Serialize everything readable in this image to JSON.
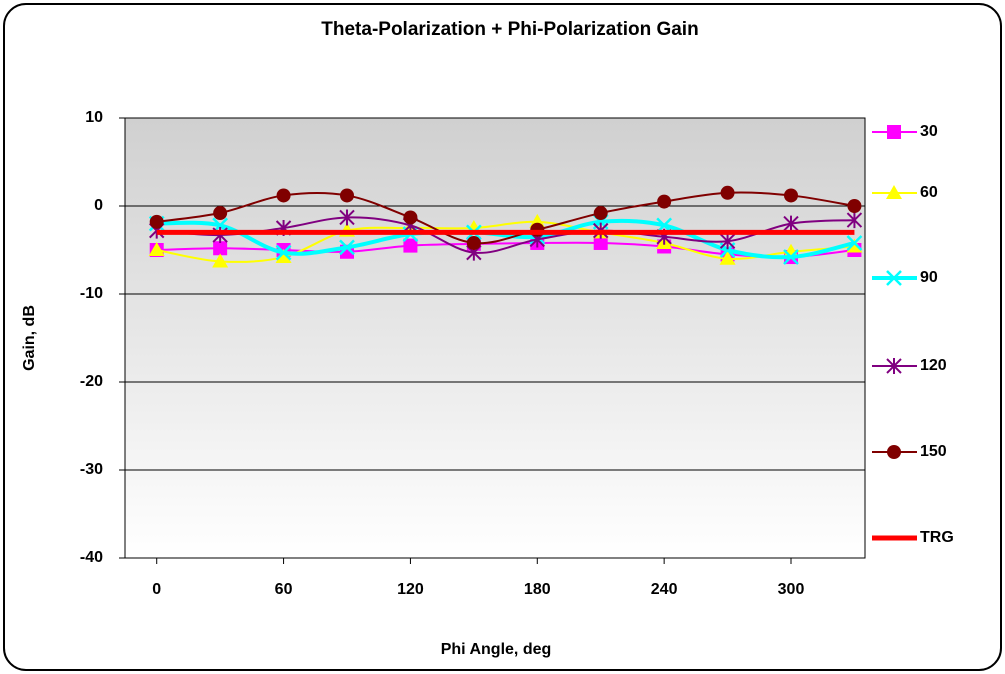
{
  "chart_data": {
    "type": "line",
    "title": "Theta-Polarization + Phi-Polarization Gain",
    "xlabel": "Phi Angle, deg",
    "ylabel": "Gain, dB",
    "x": [
      0,
      30,
      60,
      90,
      120,
      150,
      180,
      210,
      240,
      270,
      300,
      330
    ],
    "xlim": [
      -15,
      335
    ],
    "xticks": [
      0,
      60,
      120,
      180,
      240,
      300
    ],
    "ylim": [
      -40,
      10
    ],
    "yticks": [
      -40,
      -30,
      -20,
      -10,
      0,
      10
    ],
    "grid": true,
    "legend": "right",
    "series": [
      {
        "name": "30",
        "color": "#ff00ff",
        "marker": "square",
        "values": [
          -5,
          -4.8,
          -5,
          -5.2,
          -4.5,
          -4.3,
          -4.2,
          -4.2,
          -4.6,
          -5.5,
          -5.8,
          -5
        ]
      },
      {
        "name": "60",
        "color": "#ffff00",
        "marker": "triangle",
        "values": [
          -5,
          -6.3,
          -5.8,
          -2.8,
          -2.5,
          -2.5,
          -1.8,
          -3,
          -4.2,
          -6,
          -5.2,
          -4.6
        ]
      },
      {
        "name": "90",
        "color": "#00ffff",
        "marker": "x",
        "values": [
          -2,
          -2.2,
          -5.3,
          -4.7,
          -3.2,
          -3,
          -3.5,
          -1.8,
          -2.2,
          -5,
          -5.8,
          -4.2
        ]
      },
      {
        "name": "120",
        "color": "#800080",
        "marker": "star",
        "values": [
          -2.8,
          -3.3,
          -2.5,
          -1.3,
          -2.2,
          -5.3,
          -3.8,
          -2.8,
          -3.5,
          -4,
          -2,
          -1.6
        ]
      },
      {
        "name": "150",
        "color": "#800000",
        "marker": "circle",
        "values": [
          -1.8,
          -0.8,
          1.2,
          1.2,
          -1.3,
          -4.2,
          -2.7,
          -0.8,
          0.5,
          1.5,
          1.2,
          0
        ]
      },
      {
        "name": "TRG",
        "color": "#ff0000",
        "marker": "none",
        "values": [
          -3,
          -3,
          -3,
          -3,
          -3,
          -3,
          -3,
          -3,
          -3,
          -3,
          -3,
          -3
        ]
      }
    ]
  }
}
